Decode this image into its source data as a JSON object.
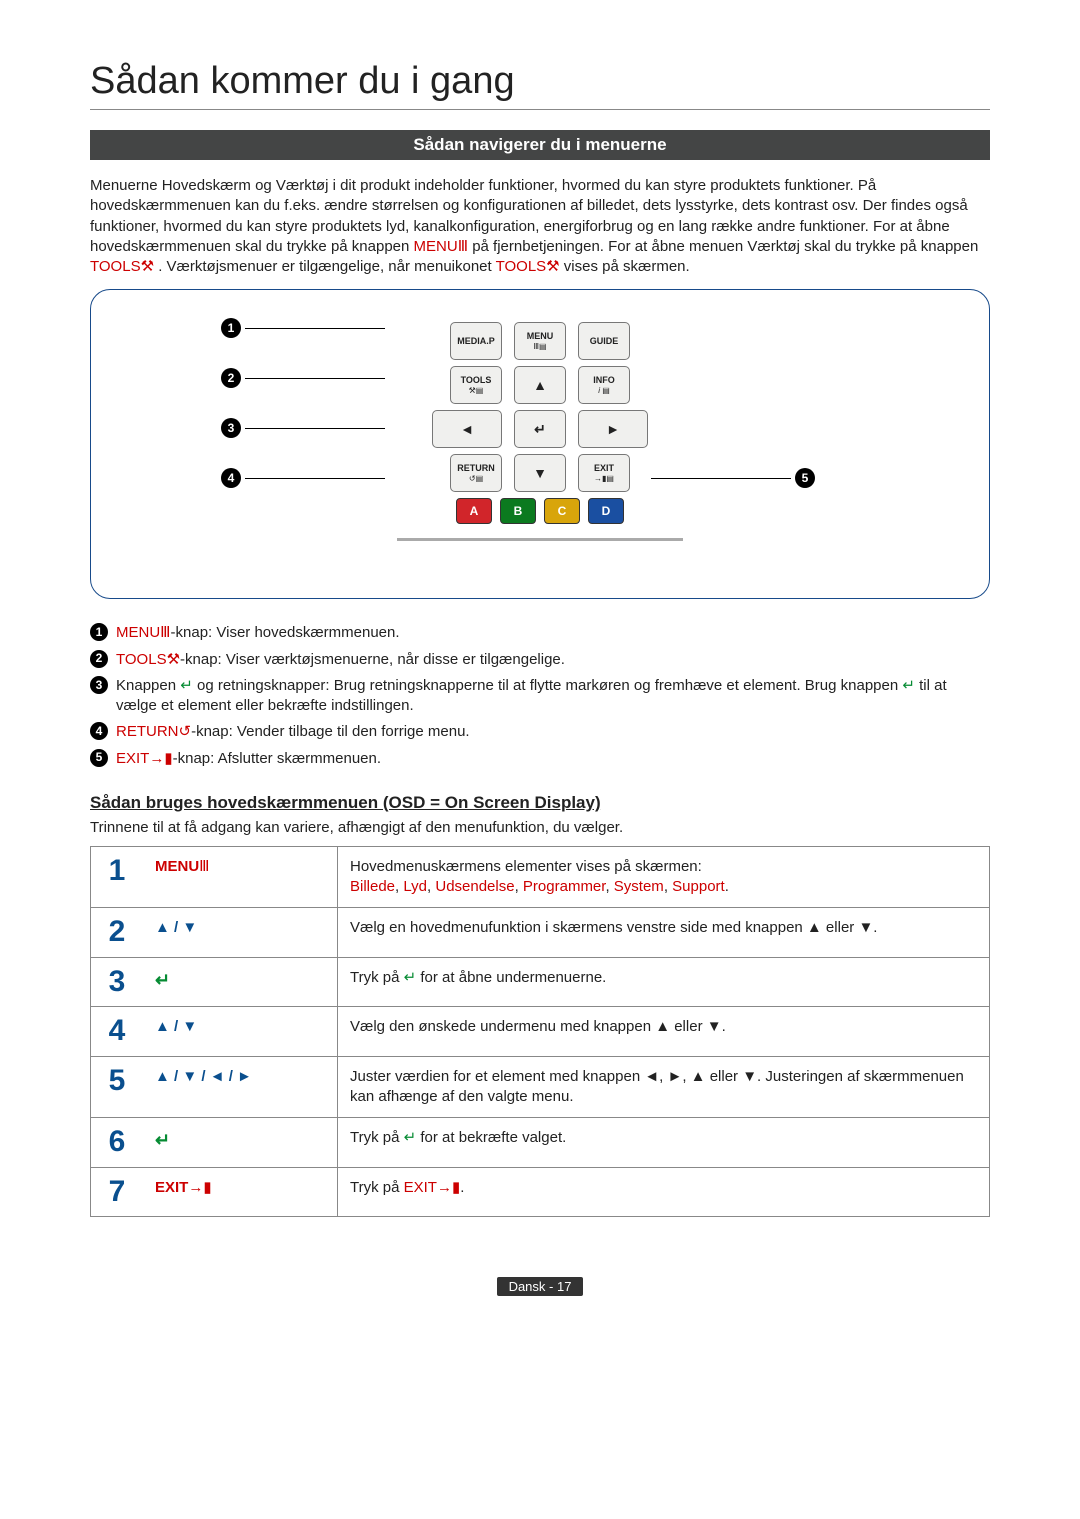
{
  "title": "Sådan kommer du i gang",
  "section_bar": "Sådan navigerer du i menuerne",
  "intro": {
    "p1a": "Menuerne Hovedskærm og Værktøj i dit produkt indeholder funktioner, hvormed du kan styre produktets funktioner. På hovedskærmmenuen kan du f.eks. ændre størrelsen og konfigurationen af billedet, dets lysstyrke, dets kontrast osv. Der findes også funktioner, hvormed du kan styre produktets lyd, kanalkonfiguration, energiforbrug og en lang række andre funktioner. For at åbne hovedskærmmenuen skal du trykke på knappen ",
    "menu": "MENU",
    "p1b": " på fjernbetjeningen. For at åbne menuen Værktøj skal du trykke på knappen ",
    "tools": "TOOLS",
    "p1c": ". Værktøjsmenuer er tilgængelige, når menuikonet ",
    "p1d": " vises på skærmen."
  },
  "remote": {
    "mediap": "MEDIA.P",
    "menu": "MENU",
    "guide": "GUIDE",
    "tools": "TOOLS",
    "info": "INFO",
    "return": "RETURN",
    "exit": "EXIT",
    "A": "A",
    "B": "B",
    "C": "C",
    "D": "D"
  },
  "legend": {
    "l1a": "MENU",
    "l1b": "-knap: Viser hovedskærmmenuen.",
    "l2a": "TOOLS",
    "l2b": "-knap: Viser værktøjsmenuerne, når disse er tilgængelige.",
    "l3a": "Knappen ",
    "l3b": " og retningsknapper: Brug retningsknapperne til at flytte markøren og fremhæve et element. Brug knappen ",
    "l3c": " til at vælge et element eller bekræfte indstillingen.",
    "l4a": "RETURN",
    "l4b": "-knap: Vender tilbage til den forrige menu.",
    "l5a": "EXIT",
    "l5b": "-knap: Afslutter skærmmenuen."
  },
  "sub_heading": "Sådan bruges hovedskærmmenuen (OSD = On Screen Display)",
  "sub_note": "Trinnene til at få adgang kan variere, afhængigt af den menufunktion, du vælger.",
  "steps": [
    {
      "num": "1",
      "key_red": "MENU",
      "key_icon": "Ⅲ",
      "desc_a": "Hovedmenuskærmens elementer vises på skærmen:",
      "categories": [
        "Billede",
        "Lyd",
        "Udsendelse",
        "Programmer",
        "System",
        "Support"
      ]
    },
    {
      "num": "2",
      "key_arrows": "▲ / ▼",
      "desc": "Vælg en hovedmenufunktion i skærmens venstre side med knappen ▲ eller ▼."
    },
    {
      "num": "3",
      "key_enter": true,
      "desc_a": "Tryk på ",
      "desc_b": " for at åbne undermenuerne."
    },
    {
      "num": "4",
      "key_arrows": "▲ / ▼",
      "desc": "Vælg den ønskede undermenu med knappen ▲ eller ▼."
    },
    {
      "num": "5",
      "key_arrows": "▲ / ▼ / ◄ / ►",
      "desc": "Juster værdien for et element med knappen ◄, ►, ▲ eller ▼. Justeringen af skærmmenuen kan afhænge af den valgte menu."
    },
    {
      "num": "6",
      "key_enter": true,
      "desc_a": "Tryk på ",
      "desc_b": " for at bekræfte valget."
    },
    {
      "num": "7",
      "key_red": "EXIT",
      "key_icon": "→▮",
      "desc_a": "Tryk på ",
      "desc_exit": "EXIT",
      "desc_b": "."
    }
  ],
  "footer": "Dansk - 17"
}
